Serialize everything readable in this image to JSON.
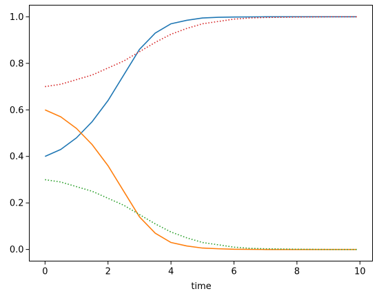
{
  "chart_data": {
    "type": "line",
    "title": "",
    "xlabel": "time",
    "ylabel": "",
    "xlim": [
      -0.5,
      10.4
    ],
    "ylim": [
      -0.05,
      1.05
    ],
    "xticks": [
      0,
      2,
      4,
      6,
      8,
      10
    ],
    "xtick_labels": [
      "0",
      "2",
      "4",
      "6",
      "8",
      "10"
    ],
    "yticks": [
      0.0,
      0.2,
      0.4,
      0.6,
      0.8,
      1.0
    ],
    "ytick_labels": [
      "0.0",
      "0.2",
      "0.4",
      "0.6",
      "0.8",
      "1.0"
    ],
    "grid": false,
    "legend": "none",
    "series": [
      {
        "color": "#1f77b4",
        "style": "solid",
        "x": [
          0,
          0.5,
          1.0,
          1.5,
          2.0,
          2.5,
          3.0,
          3.5,
          4.0,
          4.5,
          5.0,
          5.5,
          6.0,
          7.0,
          8.0,
          9.0,
          9.9
        ],
        "y": [
          0.4,
          0.43,
          0.48,
          0.55,
          0.64,
          0.75,
          0.86,
          0.93,
          0.97,
          0.985,
          0.995,
          0.998,
          0.999,
          1.0,
          1.0,
          1.0,
          1.0
        ]
      },
      {
        "color": "#ff7f0e",
        "style": "solid",
        "x": [
          0,
          0.5,
          1.0,
          1.5,
          2.0,
          2.5,
          3.0,
          3.5,
          4.0,
          4.5,
          5.0,
          5.5,
          6.0,
          7.0,
          8.0,
          9.0,
          9.9
        ],
        "y": [
          0.6,
          0.57,
          0.52,
          0.45,
          0.36,
          0.25,
          0.14,
          0.07,
          0.03,
          0.015,
          0.006,
          0.003,
          0.001,
          0.0,
          0.0,
          0.0,
          0.0
        ]
      },
      {
        "color": "#d62728",
        "style": "dotted",
        "x": [
          0,
          0.5,
          1.0,
          1.5,
          2.0,
          2.5,
          3.0,
          3.5,
          4.0,
          4.5,
          5.0,
          5.5,
          6.0,
          6.5,
          7.0,
          8.0,
          9.0,
          9.9
        ],
        "y": [
          0.7,
          0.71,
          0.73,
          0.75,
          0.78,
          0.81,
          0.85,
          0.89,
          0.925,
          0.95,
          0.97,
          0.98,
          0.99,
          0.995,
          0.997,
          0.999,
          1.0,
          1.0
        ]
      },
      {
        "color": "#2ca02c",
        "style": "dotted",
        "x": [
          0,
          0.5,
          1.0,
          1.5,
          2.0,
          2.5,
          3.0,
          3.5,
          4.0,
          4.5,
          5.0,
          5.5,
          6.0,
          6.5,
          7.0,
          8.0,
          9.0,
          9.9
        ],
        "y": [
          0.3,
          0.29,
          0.27,
          0.25,
          0.22,
          0.19,
          0.15,
          0.11,
          0.075,
          0.05,
          0.03,
          0.02,
          0.01,
          0.005,
          0.003,
          0.001,
          0.0,
          0.0
        ]
      }
    ]
  }
}
